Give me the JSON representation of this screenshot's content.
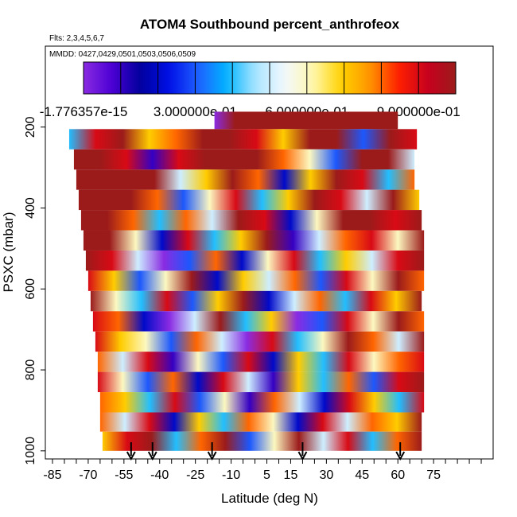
{
  "chart_data": {
    "type": "heatmap",
    "title": "ATOM4 Southbound percent_anthrofeox",
    "subtitle_flights": "Flts: 2,3,4,5,6,7",
    "subtitle_dates": "MMDD: 0427,0429,0501,0503,0506,0509",
    "xlabel": "Latitude (deg N)",
    "ylabel": "PSXC (mbar)",
    "xlim": [
      -88,
      100
    ],
    "ylim": [
      1020,
      0
    ],
    "x_ticks": [
      -85,
      -70,
      -55,
      -40,
      -25,
      -10,
      5,
      15,
      30,
      45,
      60,
      75
    ],
    "y_ticks": [
      200,
      400,
      600,
      800,
      1000
    ],
    "colorbar": {
      "range": [
        -1.776357e-15,
        1.0
      ],
      "tick_values": [
        0.0,
        0.3,
        0.6,
        0.9
      ],
      "tick_labels": [
        "-1.776357e-15",
        "3.000000e-01",
        "6.000000e-01",
        "9.000000e-01"
      ],
      "colors": [
        "#8a2be2",
        "#4b00d4",
        "#00009c",
        "#0010e8",
        "#1f60ff",
        "#00b4ff",
        "#a8e4ff",
        "#f2f8ff",
        "#fff8b0",
        "#ffd200",
        "#ff9500",
        "#ff2000",
        "#c8001e",
        "#9b1b1b"
      ]
    },
    "layers": [
      {
        "p": 180,
        "lat_min": -17,
        "lat_max": 60,
        "values": [
          0.0,
          1.0,
          1.0,
          1.0,
          1.0,
          1.0,
          1.0,
          1.0,
          1.0,
          1.0
        ]
      },
      {
        "p": 230,
        "lat_min": -78,
        "lat_max": 68,
        "values": [
          0.4,
          0.9,
          1.0,
          0.7,
          0.8,
          1.0,
          1.0,
          0.9,
          0.7,
          1.0,
          1.0,
          0.3,
          1.0,
          0.9
        ]
      },
      {
        "p": 280,
        "lat_min": -76,
        "lat_max": 67,
        "values": [
          1.0,
          1.0,
          0.9,
          0.1,
          0.9,
          1.0,
          1.0,
          1.0,
          0.8,
          0.6,
          0.3,
          1.0,
          1.0,
          0.5
        ]
      },
      {
        "p": 330,
        "lat_min": -75,
        "lat_max": 67,
        "values": [
          1.0,
          1.0,
          1.0,
          1.0,
          0.5,
          0.7,
          1.0,
          0.8,
          0.2,
          0.7,
          1.0,
          0.9,
          0.4,
          0.8
        ]
      },
      {
        "p": 380,
        "lat_min": -74,
        "lat_max": 69,
        "values": [
          1.0,
          1.0,
          1.0,
          0.8,
          0.3,
          0.6,
          0.9,
          0.4,
          0.7,
          1.0,
          0.9,
          0.5,
          1.0,
          0.7
        ]
      },
      {
        "p": 430,
        "lat_min": -73,
        "lat_max": 70,
        "values": [
          1.0,
          1.0,
          0.8,
          0.4,
          0.8,
          0.5,
          1.0,
          0.9,
          0.2,
          0.6,
          1.0,
          1.0,
          0.9,
          1.0
        ]
      },
      {
        "p": 480,
        "lat_min": -72,
        "lat_max": 71,
        "values": [
          1.0,
          1.0,
          0.6,
          0.2,
          0.9,
          0.4,
          0.7,
          1.0,
          0.1,
          0.5,
          0.8,
          0.9,
          0.6,
          1.0
        ]
      },
      {
        "p": 530,
        "lat_min": -71,
        "lat_max": 71,
        "values": [
          1.0,
          0.9,
          0.5,
          0.0,
          0.3,
          0.8,
          0.2,
          0.6,
          0.9,
          0.4,
          0.7,
          0.5,
          0.9,
          1.0
        ]
      },
      {
        "p": 580,
        "lat_min": -70,
        "lat_max": 71,
        "values": [
          0.9,
          0.7,
          0.3,
          0.6,
          1.0,
          0.2,
          0.7,
          0.5,
          0.8,
          0.3,
          0.9,
          0.6,
          1.0,
          0.8
        ]
      },
      {
        "p": 630,
        "lat_min": -69,
        "lat_max": 70,
        "values": [
          1.0,
          0.6,
          0.4,
          0.9,
          0.3,
          0.7,
          1.0,
          0.2,
          0.5,
          0.8,
          0.4,
          0.9,
          0.7,
          1.0
        ]
      },
      {
        "p": 680,
        "lat_min": -68,
        "lat_max": 71,
        "values": [
          0.9,
          0.8,
          0.2,
          0.0,
          0.5,
          1.0,
          0.4,
          0.7,
          0.0,
          0.3,
          0.9,
          0.6,
          1.0,
          0.8
        ]
      },
      {
        "p": 730,
        "lat_min": -67,
        "lat_max": 71,
        "values": [
          0.9,
          0.7,
          0.6,
          0.3,
          0.8,
          0.5,
          0.0,
          0.9,
          0.4,
          0.6,
          1.0,
          0.8,
          0.5,
          1.0
        ]
      },
      {
        "p": 780,
        "lat_min": -66,
        "lat_max": 71,
        "values": [
          0.8,
          0.5,
          0.9,
          0.1,
          0.6,
          0.3,
          0.9,
          0.2,
          0.7,
          0.4,
          0.9,
          0.6,
          0.8,
          0.9
        ]
      },
      {
        "p": 830,
        "lat_min": -66,
        "lat_max": 71,
        "values": [
          0.9,
          0.6,
          0.3,
          0.8,
          0.2,
          0.9,
          0.5,
          0.1,
          0.7,
          0.4,
          0.8,
          0.3,
          0.9,
          1.0
        ]
      },
      {
        "p": 880,
        "lat_min": -65,
        "lat_max": 71,
        "values": [
          0.8,
          0.7,
          0.4,
          0.9,
          0.3,
          0.6,
          0.1,
          0.8,
          0.5,
          0.2,
          0.9,
          0.7,
          0.4,
          0.9
        ]
      },
      {
        "p": 930,
        "lat_min": -65,
        "lat_max": 70,
        "values": [
          0.8,
          0.5,
          0.9,
          0.2,
          0.7,
          0.4,
          0.8,
          0.6,
          0.2,
          0.9,
          0.5,
          0.8,
          0.7,
          1.0
        ]
      },
      {
        "p": 975,
        "lat_min": -64,
        "lat_max": 70,
        "values": [
          0.7,
          0.9,
          1.0,
          0.4,
          0.8,
          1.0,
          0.3,
          0.6,
          1.0,
          0.5,
          0.9,
          0.4,
          0.8,
          1.0
        ]
      }
    ],
    "arrows_lat": [
      -52,
      -43,
      -18,
      20,
      61
    ],
    "grid": false,
    "legend": "colorbar-top"
  }
}
